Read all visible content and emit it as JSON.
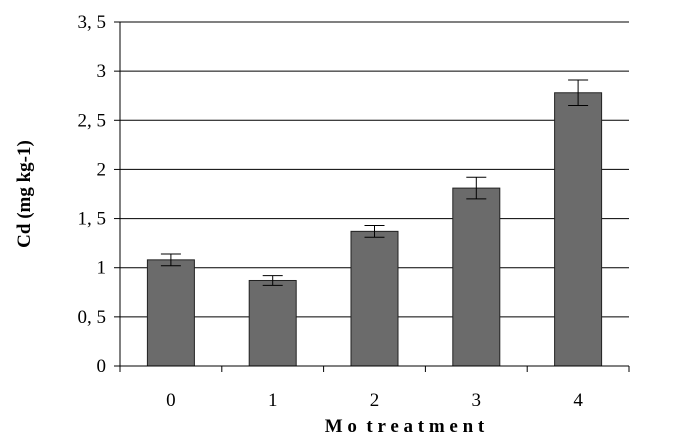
{
  "chart_data": {
    "type": "bar",
    "title": "",
    "xlabel": "M o  t r e a t m e n t",
    "ylabel": "Cd (mg kg-1)",
    "categories": [
      "0",
      "1",
      "2",
      "3",
      "4"
    ],
    "series": [
      {
        "values": [
          1.08,
          0.87,
          1.37,
          1.81,
          2.78
        ],
        "error": [
          0.06,
          0.05,
          0.06,
          0.11,
          0.13
        ]
      }
    ],
    "ylim": [
      0,
      3.5
    ],
    "yticks": [
      {
        "value": 0,
        "label": "0"
      },
      {
        "value": 0.5,
        "label": "0, 5"
      },
      {
        "value": 1,
        "label": "1"
      },
      {
        "value": 1.5,
        "label": "1, 5"
      },
      {
        "value": 2,
        "label": "2"
      },
      {
        "value": 2.5,
        "label": "2, 5"
      },
      {
        "value": 3,
        "label": "3"
      },
      {
        "value": 3.5,
        "label": "3, 5"
      }
    ],
    "grid": true,
    "legend": "none",
    "colors": {
      "bar": "#6b6b6b",
      "bar_stroke": "#222222",
      "grid": "#000000"
    }
  }
}
